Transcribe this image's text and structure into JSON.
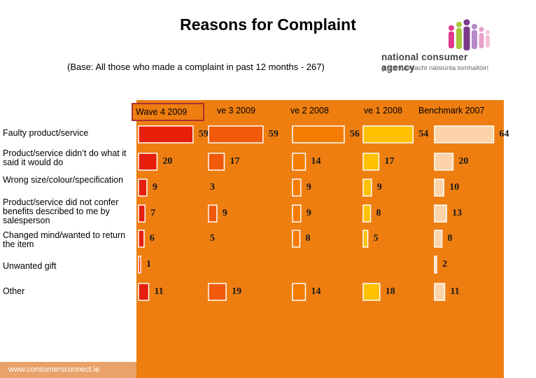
{
  "title": "Reasons for Complaint",
  "subtitle": "(Base: All those who made a complaint in past 12 months - 267)",
  "logo": {
    "name": "national consumer agency",
    "irish": "gníomhaireacht náisiúnta tomhaltóirí"
  },
  "footer": "www.consumersconnect.ie",
  "colors": {
    "panel": "#ee7e10",
    "wave4": "#e61e0a",
    "wave3": "#f05a0a",
    "wave2": "#f57c00",
    "wave1": "#ffc000",
    "benchmark": "#fcd3a8"
  },
  "columns": [
    "Wave 4 2009",
    "ve 3 2009",
    "ve 2 2008",
    "ve 1 2008",
    "Benchmark 2007"
  ],
  "rows": [
    {
      "label": "Faulty product/service"
    },
    {
      "label": "Product/service didn’t do what it said it would do"
    },
    {
      "label": "Wrong size/colour/specification"
    },
    {
      "label": "Product/service did not confer benefits described to me by salesperson"
    },
    {
      "label": "Changed mind/wanted to return the item"
    },
    {
      "label": "Unwanted gift"
    },
    {
      "label": "Other"
    }
  ],
  "chart_data": {
    "type": "bar",
    "title": "Reasons for Complaint",
    "categories": [
      "Faulty product/service",
      "Product/service didn’t do what it said it would do",
      "Wrong size/colour/specification",
      "Product/service did not confer benefits described to me by salesperson",
      "Changed mind/wanted to return the item",
      "Unwanted gift",
      "Other"
    ],
    "series": [
      {
        "name": "Wave 4 2009",
        "values": [
          59,
          20,
          9,
          7,
          6,
          1,
          11
        ]
      },
      {
        "name": "ve 3 2009",
        "values": [
          59,
          17,
          null,
          9,
          null,
          null,
          19
        ]
      },
      {
        "name": "ve 2 2008",
        "values": [
          56,
          14,
          9,
          9,
          8,
          null,
          14
        ]
      },
      {
        "name": "ve 1 2008",
        "values": [
          54,
          17,
          9,
          8,
          5,
          null,
          18
        ]
      },
      {
        "name": "Benchmark 2007",
        "values": [
          64,
          20,
          10,
          13,
          8,
          2,
          11
        ]
      }
    ],
    "value_labels": [
      [
        "59",
        "20",
        "9",
        "7",
        "6",
        "1",
        "11"
      ],
      [
        "59",
        "17",
        "3",
        "9",
        "5",
        "",
        "19"
      ],
      [
        "56",
        "14",
        "9",
        "9",
        "8",
        "",
        "14"
      ],
      [
        "54",
        "17",
        "9",
        "8",
        "5",
        "",
        "18"
      ],
      [
        "64",
        "20",
        "10",
        "13",
        "8",
        "2",
        "11"
      ]
    ],
    "ylim": [
      0,
      70
    ]
  }
}
